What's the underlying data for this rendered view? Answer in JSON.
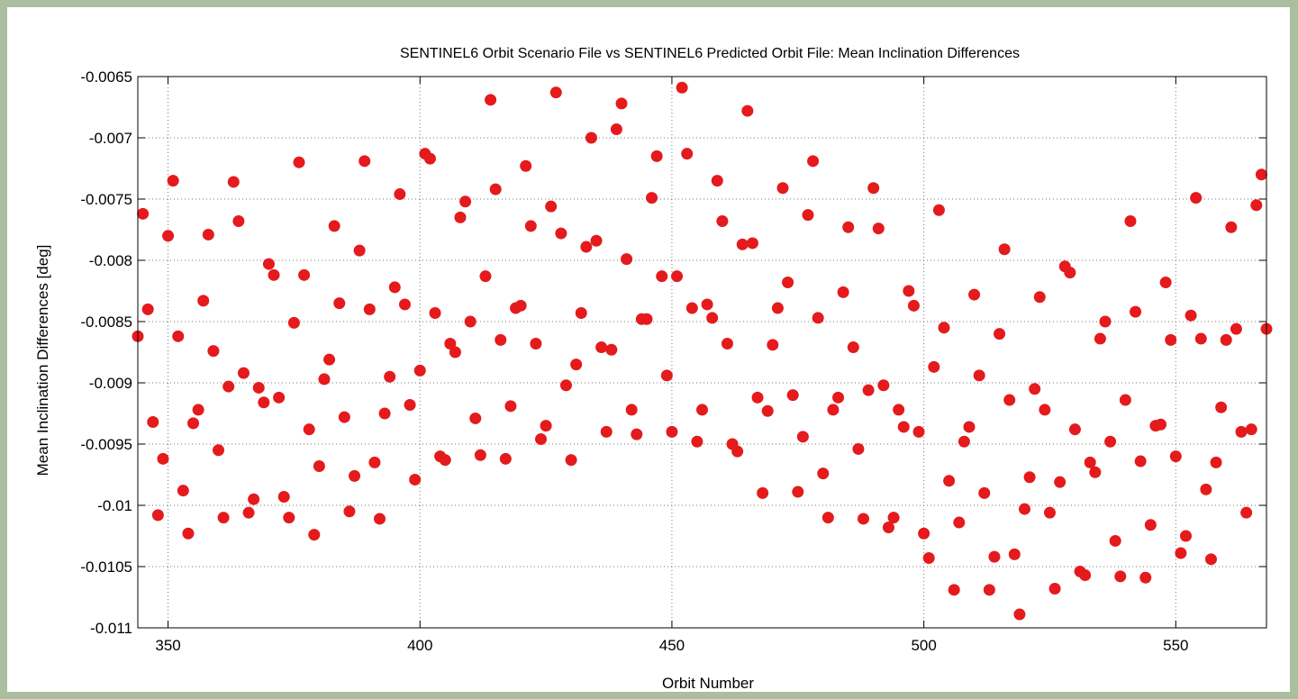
{
  "chart_data": {
    "type": "scatter",
    "title": "SENTINEL6 Orbit Scenario File vs SENTINEL6 Predicted Orbit File: Mean Inclination Differences",
    "xlabel": "Orbit Number",
    "ylabel": "Mean Inclination Differences [deg]",
    "xlim": [
      344,
      568
    ],
    "ylim": [
      -0.011,
      -0.0065
    ],
    "xticks": [
      350,
      400,
      450,
      500,
      550
    ],
    "xtick_labels": [
      "350",
      "400",
      "450",
      "500",
      "550"
    ],
    "yticks": [
      -0.0065,
      -0.007,
      -0.0075,
      -0.008,
      -0.0085,
      -0.009,
      -0.0095,
      -0.01,
      -0.0105,
      -0.011
    ],
    "ytick_labels": [
      "-0.0065",
      "-0.007",
      "-0.0075",
      "-0.008",
      "-0.0085",
      "-0.009",
      "-0.0095",
      "-0.01",
      "-0.0105",
      "-0.011"
    ],
    "grid": true,
    "marker_color": "#e41a1c",
    "points": [
      [
        344,
        -0.00862
      ],
      [
        345,
        -0.00762
      ],
      [
        346,
        -0.0084
      ],
      [
        347,
        -0.00932
      ],
      [
        348,
        -0.01008
      ],
      [
        349,
        -0.00962
      ],
      [
        350,
        -0.0078
      ],
      [
        351,
        -0.00735
      ],
      [
        352,
        -0.00862
      ],
      [
        353,
        -0.00988
      ],
      [
        354,
        -0.01023
      ],
      [
        355,
        -0.00933
      ],
      [
        356,
        -0.00922
      ],
      [
        357,
        -0.00833
      ],
      [
        358,
        -0.00779
      ],
      [
        359,
        -0.00874
      ],
      [
        360,
        -0.00955
      ],
      [
        361,
        -0.0101
      ],
      [
        362,
        -0.00903
      ],
      [
        363,
        -0.00736
      ],
      [
        364,
        -0.00768
      ],
      [
        365,
        -0.00892
      ],
      [
        366,
        -0.01006
      ],
      [
        367,
        -0.00995
      ],
      [
        368,
        -0.00904
      ],
      [
        369,
        -0.00916
      ],
      [
        370,
        -0.00803
      ],
      [
        371,
        -0.00812
      ],
      [
        372,
        -0.00912
      ],
      [
        373,
        -0.00993
      ],
      [
        374,
        -0.0101
      ],
      [
        375,
        -0.00851
      ],
      [
        376,
        -0.0072
      ],
      [
        377,
        -0.00812
      ],
      [
        378,
        -0.00938
      ],
      [
        379,
        -0.01024
      ],
      [
        380,
        -0.00968
      ],
      [
        381,
        -0.00897
      ],
      [
        382,
        -0.00881
      ],
      [
        383,
        -0.00772
      ],
      [
        384,
        -0.00835
      ],
      [
        385,
        -0.00928
      ],
      [
        386,
        -0.01005
      ],
      [
        387,
        -0.00976
      ],
      [
        388,
        -0.00792
      ],
      [
        389,
        -0.00719
      ],
      [
        390,
        -0.0084
      ],
      [
        391,
        -0.00965
      ],
      [
        392,
        -0.01011
      ],
      [
        393,
        -0.00925
      ],
      [
        394,
        -0.00895
      ],
      [
        395,
        -0.00822
      ],
      [
        396,
        -0.00746
      ],
      [
        397,
        -0.00836
      ],
      [
        398,
        -0.00918
      ],
      [
        399,
        -0.00979
      ],
      [
        400,
        -0.0089
      ],
      [
        401,
        -0.00713
      ],
      [
        402,
        -0.00717
      ],
      [
        403,
        -0.00843
      ],
      [
        404,
        -0.0096
      ],
      [
        405,
        -0.00963
      ],
      [
        406,
        -0.00868
      ],
      [
        407,
        -0.00875
      ],
      [
        408,
        -0.00765
      ],
      [
        409,
        -0.00752
      ],
      [
        410,
        -0.0085
      ],
      [
        411,
        -0.00929
      ],
      [
        412,
        -0.00959
      ],
      [
        413,
        -0.00813
      ],
      [
        414,
        -0.00669
      ],
      [
        415,
        -0.00742
      ],
      [
        416,
        -0.00865
      ],
      [
        417,
        -0.00962
      ],
      [
        418,
        -0.00919
      ],
      [
        419,
        -0.00839
      ],
      [
        420,
        -0.00837
      ],
      [
        421,
        -0.00723
      ],
      [
        422,
        -0.00772
      ],
      [
        423,
        -0.00868
      ],
      [
        424,
        -0.00946
      ],
      [
        425,
        -0.00935
      ],
      [
        426,
        -0.00756
      ],
      [
        427,
        -0.00663
      ],
      [
        428,
        -0.00778
      ],
      [
        429,
        -0.00902
      ],
      [
        430,
        -0.00963
      ],
      [
        431,
        -0.00885
      ],
      [
        432,
        -0.00843
      ],
      [
        433,
        -0.00789
      ],
      [
        434,
        -0.007
      ],
      [
        435,
        -0.00784
      ],
      [
        436,
        -0.00871
      ],
      [
        437,
        -0.0094
      ],
      [
        438,
        -0.00873
      ],
      [
        439,
        -0.00693
      ],
      [
        440,
        -0.00672
      ],
      [
        441,
        -0.00799
      ],
      [
        442,
        -0.00922
      ],
      [
        443,
        -0.00942
      ],
      [
        444,
        -0.00848
      ],
      [
        445,
        -0.00848
      ],
      [
        446,
        -0.00749
      ],
      [
        447,
        -0.00715
      ],
      [
        448,
        -0.00813
      ],
      [
        449,
        -0.00894
      ],
      [
        450,
        -0.0094
      ],
      [
        451,
        -0.00813
      ],
      [
        452,
        -0.00659
      ],
      [
        453,
        -0.00713
      ],
      [
        454,
        -0.00839
      ],
      [
        455,
        -0.00948
      ],
      [
        456,
        -0.00922
      ],
      [
        457,
        -0.00836
      ],
      [
        458,
        -0.00847
      ],
      [
        459,
        -0.00735
      ],
      [
        460,
        -0.00768
      ],
      [
        461,
        -0.00868
      ],
      [
        462,
        -0.0095
      ],
      [
        463,
        -0.00956
      ],
      [
        464,
        -0.00787
      ],
      [
        465,
        -0.00678
      ],
      [
        466,
        -0.00786
      ],
      [
        467,
        -0.00912
      ],
      [
        468,
        -0.0099
      ],
      [
        469,
        -0.00923
      ],
      [
        470,
        -0.00869
      ],
      [
        471,
        -0.00839
      ],
      [
        472,
        -0.00741
      ],
      [
        473,
        -0.00818
      ],
      [
        474,
        -0.0091
      ],
      [
        475,
        -0.00989
      ],
      [
        476,
        -0.00944
      ],
      [
        477,
        -0.00763
      ],
      [
        478,
        -0.00719
      ],
      [
        479,
        -0.00847
      ],
      [
        480,
        -0.00974
      ],
      [
        481,
        -0.0101
      ],
      [
        482,
        -0.00922
      ],
      [
        483,
        -0.00912
      ],
      [
        484,
        -0.00826
      ],
      [
        485,
        -0.00773
      ],
      [
        486,
        -0.00871
      ],
      [
        487,
        -0.00954
      ],
      [
        488,
        -0.01011
      ],
      [
        489,
        -0.00906
      ],
      [
        490,
        -0.00741
      ],
      [
        491,
        -0.00774
      ],
      [
        492,
        -0.00902
      ],
      [
        493,
        -0.01018
      ],
      [
        494,
        -0.0101
      ],
      [
        495,
        -0.00922
      ],
      [
        496,
        -0.00936
      ],
      [
        497,
        -0.00825
      ],
      [
        498,
        -0.00837
      ],
      [
        499,
        -0.0094
      ],
      [
        500,
        -0.01023
      ],
      [
        501,
        -0.01043
      ],
      [
        502,
        -0.00887
      ],
      [
        503,
        -0.00759
      ],
      [
        504,
        -0.00855
      ],
      [
        505,
        -0.0098
      ],
      [
        506,
        -0.01069
      ],
      [
        507,
        -0.01014
      ],
      [
        508,
        -0.00948
      ],
      [
        509,
        -0.00936
      ],
      [
        510,
        -0.00828
      ],
      [
        511,
        -0.00894
      ],
      [
        512,
        -0.0099
      ],
      [
        513,
        -0.01069
      ],
      [
        514,
        -0.01042
      ],
      [
        515,
        -0.0086
      ],
      [
        516,
        -0.00791
      ],
      [
        517,
        -0.00914
      ],
      [
        518,
        -0.0104
      ],
      [
        519,
        -0.01089
      ],
      [
        520,
        -0.01003
      ],
      [
        521,
        -0.00977
      ],
      [
        522,
        -0.00905
      ],
      [
        523,
        -0.0083
      ],
      [
        524,
        -0.00922
      ],
      [
        525,
        -0.01006
      ],
      [
        526,
        -0.01068
      ],
      [
        527,
        -0.00981
      ],
      [
        528,
        -0.00805
      ],
      [
        529,
        -0.0081
      ],
      [
        530,
        -0.00938
      ],
      [
        531,
        -0.01054
      ],
      [
        532,
        -0.01057
      ],
      [
        533,
        -0.00965
      ],
      [
        534,
        -0.00973
      ],
      [
        535,
        -0.00864
      ],
      [
        536,
        -0.0085
      ],
      [
        537,
        -0.00948
      ],
      [
        538,
        -0.01029
      ],
      [
        539,
        -0.01058
      ],
      [
        540,
        -0.00914
      ],
      [
        541,
        -0.00768
      ],
      [
        542,
        -0.00842
      ],
      [
        543,
        -0.00964
      ],
      [
        544,
        -0.01059
      ],
      [
        545,
        -0.01016
      ],
      [
        546,
        -0.00935
      ],
      [
        547,
        -0.00934
      ],
      [
        548,
        -0.00818
      ],
      [
        549,
        -0.00865
      ],
      [
        550,
        -0.0096
      ],
      [
        551,
        -0.01039
      ],
      [
        552,
        -0.01025
      ],
      [
        553,
        -0.00845
      ],
      [
        554,
        -0.00749
      ],
      [
        555,
        -0.00864
      ],
      [
        556,
        -0.00987
      ],
      [
        557,
        -0.01044
      ],
      [
        558,
        -0.00965
      ],
      [
        559,
        -0.0092
      ],
      [
        560,
        -0.00865
      ],
      [
        561,
        -0.00773
      ],
      [
        562,
        -0.00856
      ],
      [
        563,
        -0.0094
      ],
      [
        564,
        -0.01006
      ],
      [
        565,
        -0.00938
      ],
      [
        566,
        -0.00755
      ],
      [
        567,
        -0.0073
      ],
      [
        568,
        -0.00856
      ]
    ]
  }
}
